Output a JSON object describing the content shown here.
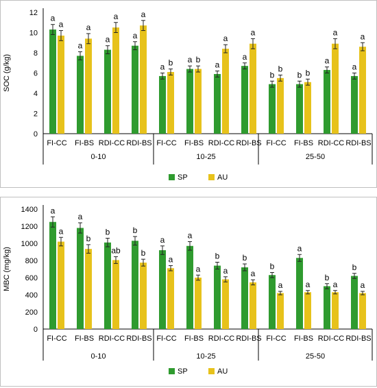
{
  "colors": {
    "SP": "#2f9b2f",
    "AU": "#e7c21b",
    "err": "#222222"
  },
  "legend": {
    "series": [
      "SP",
      "AU"
    ]
  },
  "chart_data": [
    {
      "type": "bar",
      "ylabel": "SOC (g/kg)",
      "ylim": [
        0,
        12
      ],
      "yticks": [
        0,
        2,
        4,
        6,
        8,
        10,
        12
      ],
      "categories": [
        "FI-CC",
        "FI-BS",
        "RDI-CC",
        "RDI-BS",
        "FI-CC",
        "FI-BS",
        "RDI-CC",
        "RDI-BS",
        "FI-CC",
        "FI-BS",
        "RDI-CC",
        "RDI-BS"
      ],
      "groups": [
        {
          "label": "0-10",
          "count": 4
        },
        {
          "label": "10-25",
          "count": 4
        },
        {
          "label": "25-50",
          "count": 4
        }
      ],
      "series": [
        {
          "name": "SP",
          "values": [
            10.3,
            7.7,
            8.3,
            8.7,
            5.7,
            6.4,
            5.9,
            6.7,
            4.9,
            4.9,
            6.3,
            5.7
          ],
          "errors": [
            0.5,
            0.4,
            0.4,
            0.4,
            0.3,
            0.3,
            0.3,
            0.3,
            0.3,
            0.3,
            0.3,
            0.3
          ],
          "labels": [
            "a",
            "a",
            "a",
            "a",
            "a",
            "a",
            "a",
            "a",
            "b",
            "b",
            "a",
            "a"
          ]
        },
        {
          "name": "AU",
          "values": [
            9.7,
            9.4,
            10.5,
            10.7,
            6.1,
            6.4,
            8.4,
            8.9,
            5.5,
            5.1,
            8.9,
            8.6
          ],
          "errors": [
            0.5,
            0.5,
            0.5,
            0.5,
            0.3,
            0.3,
            0.4,
            0.5,
            0.3,
            0.3,
            0.5,
            0.4
          ],
          "labels": [
            "a",
            "a",
            "a",
            "a",
            "b",
            "b",
            "a",
            "a",
            "b",
            "b",
            "a",
            "a"
          ]
        }
      ]
    },
    {
      "type": "bar",
      "ylabel": "MBC (mg/kg)",
      "ylim": [
        0,
        1400
      ],
      "yticks": [
        0,
        200,
        400,
        600,
        800,
        1000,
        1200,
        1400
      ],
      "categories": [
        "FI-CC",
        "FI-BS",
        "RDI-CC",
        "RDI-BS",
        "FI-CC",
        "FI-BS",
        "RDI-CC",
        "RDI-BS",
        "FI-CC",
        "FI-BS",
        "RDI-CC",
        "RDI-BS"
      ],
      "groups": [
        {
          "label": "0-10",
          "count": 4
        },
        {
          "label": "10-25",
          "count": 4
        },
        {
          "label": "25-50",
          "count": 4
        }
      ],
      "series": [
        {
          "name": "SP",
          "values": [
            1250,
            1180,
            1010,
            1030,
            920,
            970,
            740,
            720,
            630,
            830,
            500,
            620
          ],
          "errors": [
            60,
            60,
            50,
            50,
            50,
            50,
            40,
            40,
            30,
            40,
            30,
            30
          ],
          "labels": [
            "a",
            "a",
            "b",
            "b",
            "a",
            "a",
            "b",
            "b",
            "b",
            "a",
            "b",
            "b"
          ]
        },
        {
          "name": "AU",
          "values": [
            1020,
            935,
            805,
            775,
            710,
            600,
            580,
            545,
            420,
            430,
            430,
            420
          ],
          "errors": [
            50,
            50,
            40,
            40,
            30,
            30,
            30,
            30,
            20,
            20,
            20,
            20
          ],
          "labels": [
            "a",
            "b",
            "ab",
            "b",
            "a",
            "a",
            "a",
            "a",
            "a",
            "a",
            "a",
            "a"
          ]
        }
      ]
    }
  ]
}
